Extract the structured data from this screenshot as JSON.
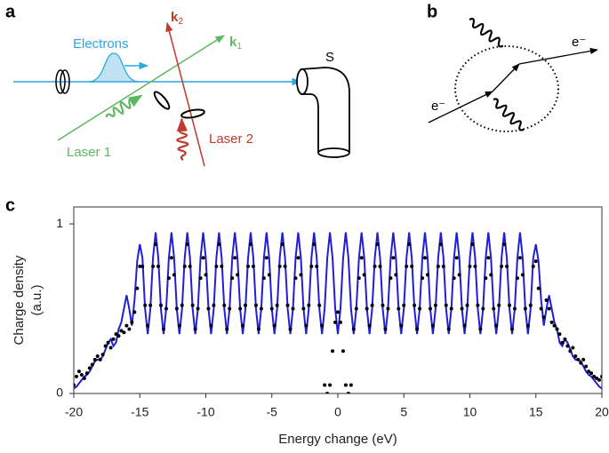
{
  "panels": {
    "a": "a",
    "b": "b",
    "c": "c"
  },
  "diagram_a": {
    "electrons": "Electrons",
    "k1": {
      "symbol": "k",
      "subscript": "1"
    },
    "k2": {
      "symbol": "k",
      "subscript": "2"
    },
    "sample": "S",
    "laser1": "Laser 1",
    "laser2": "Laser 2"
  },
  "diagram_b": {
    "electron_in": "e⁻",
    "electron_out": "e⁻"
  },
  "chart_data": {
    "type": "line",
    "xlabel": "Energy change (eV)",
    "ylabel": [
      "Charge density",
      "(a.u.)"
    ],
    "xlim": [
      -20,
      20
    ],
    "ylim": [
      0,
      1.1
    ],
    "xticks": [
      -20,
      -15,
      -10,
      -5,
      0,
      5,
      10,
      15,
      20
    ],
    "yticks": [
      0,
      1
    ],
    "x": [
      -20,
      -19.8,
      -19.6,
      -19.4,
      -19.2,
      -19,
      -18.8,
      -18.6,
      -18.4,
      -18.2,
      -18,
      -17.8,
      -17.6,
      -17.4,
      -17.2,
      -17,
      -16.8,
      -16.6,
      -16.4,
      -16.2,
      -16,
      -15.8,
      -15.6,
      -15.4,
      -15.2,
      -15,
      -14.8,
      -14.6,
      -14.4,
      -14.2,
      -14,
      -13.8,
      -13.6,
      -13.4,
      -13.2,
      -13,
      -12.8,
      -12.6,
      -12.4,
      -12.2,
      -12,
      -11.8,
      -11.6,
      -11.4,
      -11.2,
      -11,
      -10.8,
      -10.6,
      -10.4,
      -10.2,
      -10,
      -9.8,
      -9.6,
      -9.4,
      -9.2,
      -9,
      -8.8,
      -8.6,
      -8.4,
      -8.2,
      -8,
      -7.8,
      -7.6,
      -7.4,
      -7.2,
      -7,
      -6.8,
      -6.6,
      -6.4,
      -6.2,
      -6,
      -5.8,
      -5.6,
      -5.4,
      -5.2,
      -5,
      -4.8,
      -4.6,
      -4.4,
      -4.2,
      -4,
      -3.8,
      -3.6,
      -3.4,
      -3.2,
      -3,
      -2.8,
      -2.6,
      -2.4,
      -2.2,
      -2,
      -1.8,
      -1.6,
      -1.4,
      -1.2,
      -1,
      -0.8,
      -0.6,
      -0.4,
      -0.2,
      0,
      0.2,
      0.4,
      0.6,
      0.8,
      1,
      1.2,
      1.4,
      1.6,
      1.8,
      2,
      2.2,
      2.4,
      2.6,
      2.8,
      3,
      3.2,
      3.4,
      3.6,
      3.8,
      4,
      4.2,
      4.4,
      4.6,
      4.8,
      5,
      5.2,
      5.4,
      5.6,
      5.8,
      6,
      6.2,
      6.4,
      6.6,
      6.8,
      7,
      7.2,
      7.4,
      7.6,
      7.8,
      8,
      8.2,
      8.4,
      8.6,
      8.8,
      9,
      9.2,
      9.4,
      9.6,
      9.8,
      10,
      10.2,
      10.4,
      10.6,
      10.8,
      11,
      11.2,
      11.4,
      11.6,
      11.8,
      12,
      12.2,
      12.4,
      12.6,
      12.8,
      13,
      13.2,
      13.4,
      13.6,
      13.8,
      14,
      14.2,
      14.4,
      14.6,
      14.8,
      15,
      15.2,
      15.4,
      15.6,
      15.8,
      16,
      16.2,
      16.4,
      16.6,
      16.8,
      17,
      17.2,
      17.4,
      17.6,
      17.8,
      18,
      18.2,
      18.4,
      18.6,
      18.8,
      19,
      19.2,
      19.4,
      19.6,
      19.8,
      20
    ],
    "series": [
      {
        "color": "#1f1fd6",
        "style": "line",
        "values": [
          0.03,
          0.04,
          0.06,
          0.08,
          0.1,
          0.11,
          0.13,
          0.16,
          0.19,
          0.2,
          0.2,
          0.22,
          0.26,
          0.3,
          0.32,
          0.28,
          0.3,
          0.38,
          0.42,
          0.5,
          0.58,
          0.5,
          0.4,
          0.55,
          0.78,
          0.88,
          0.8,
          0.5,
          0.35,
          0.5,
          0.8,
          0.95,
          0.8,
          0.5,
          0.35,
          0.5,
          0.8,
          0.95,
          0.8,
          0.5,
          0.35,
          0.5,
          0.8,
          0.95,
          0.8,
          0.5,
          0.35,
          0.5,
          0.8,
          0.95,
          0.8,
          0.5,
          0.35,
          0.5,
          0.8,
          0.95,
          0.8,
          0.5,
          0.35,
          0.5,
          0.8,
          0.95,
          0.8,
          0.5,
          0.35,
          0.5,
          0.8,
          0.95,
          0.8,
          0.5,
          0.35,
          0.5,
          0.8,
          0.95,
          0.8,
          0.5,
          0.35,
          0.5,
          0.8,
          0.95,
          0.8,
          0.5,
          0.35,
          0.5,
          0.8,
          0.95,
          0.8,
          0.5,
          0.35,
          0.5,
          0.8,
          0.95,
          0.8,
          0.5,
          0.35,
          0.5,
          0.8,
          0.95,
          0.8,
          0.5,
          0.35,
          0.5,
          0.8,
          0.95,
          0.8,
          0.5,
          0.35,
          0.5,
          0.8,
          0.95,
          0.8,
          0.5,
          0.35,
          0.5,
          0.8,
          0.95,
          0.8,
          0.5,
          0.35,
          0.5,
          0.8,
          0.95,
          0.8,
          0.5,
          0.35,
          0.5,
          0.8,
          0.95,
          0.8,
          0.5,
          0.35,
          0.5,
          0.8,
          0.95,
          0.8,
          0.5,
          0.35,
          0.5,
          0.8,
          0.95,
          0.8,
          0.5,
          0.35,
          0.5,
          0.8,
          0.95,
          0.8,
          0.5,
          0.35,
          0.5,
          0.8,
          0.95,
          0.8,
          0.5,
          0.35,
          0.5,
          0.8,
          0.95,
          0.8,
          0.5,
          0.35,
          0.5,
          0.8,
          0.95,
          0.8,
          0.5,
          0.35,
          0.5,
          0.8,
          0.95,
          0.8,
          0.5,
          0.35,
          0.5,
          0.8,
          0.88,
          0.78,
          0.55,
          0.4,
          0.5,
          0.58,
          0.5,
          0.42,
          0.38,
          0.3,
          0.28,
          0.32,
          0.3,
          0.26,
          0.22,
          0.2,
          0.2,
          0.19,
          0.16,
          0.13,
          0.11,
          0.1,
          0.08,
          0.06,
          0.04,
          0.03
        ]
      },
      {
        "color": "#000000",
        "style": "dots",
        "values": [
          0.05,
          0.1,
          0.13,
          0.11,
          0.09,
          0.12,
          0.15,
          0.17,
          0.2,
          0.22,
          0.2,
          0.23,
          0.28,
          0.3,
          0.27,
          0.32,
          0.35,
          0.34,
          0.37,
          0.36,
          0.4,
          0.38,
          0.42,
          0.48,
          0.62,
          0.75,
          0.75,
          0.52,
          0.4,
          0.52,
          0.75,
          0.88,
          0.75,
          0.52,
          0.38,
          0.5,
          0.68,
          0.8,
          0.7,
          0.5,
          0.4,
          0.52,
          0.75,
          0.88,
          0.75,
          0.52,
          0.38,
          0.5,
          0.68,
          0.8,
          0.7,
          0.5,
          0.4,
          0.52,
          0.75,
          0.88,
          0.75,
          0.52,
          0.38,
          0.5,
          0.68,
          0.8,
          0.7,
          0.5,
          0.4,
          0.52,
          0.75,
          0.88,
          0.75,
          0.52,
          0.38,
          0.5,
          0.68,
          0.8,
          0.7,
          0.5,
          0.4,
          0.52,
          0.75,
          0.88,
          0.75,
          0.52,
          0.38,
          0.5,
          0.68,
          0.8,
          0.7,
          0.5,
          0.4,
          0.52,
          0.75,
          0.88,
          0.75,
          0.52,
          0.4,
          0.05,
          0,
          0.05,
          0.25,
          0.42,
          0.48,
          0.42,
          0.25,
          0.05,
          0,
          0.05,
          0.38,
          0.5,
          0.68,
          0.8,
          0.7,
          0.5,
          0.4,
          0.52,
          0.75,
          0.88,
          0.75,
          0.52,
          0.38,
          0.5,
          0.68,
          0.8,
          0.7,
          0.5,
          0.4,
          0.52,
          0.75,
          0.88,
          0.75,
          0.52,
          0.38,
          0.5,
          0.68,
          0.8,
          0.7,
          0.5,
          0.4,
          0.52,
          0.75,
          0.88,
          0.75,
          0.52,
          0.38,
          0.5,
          0.68,
          0.8,
          0.7,
          0.5,
          0.4,
          0.52,
          0.75,
          0.88,
          0.75,
          0.52,
          0.38,
          0.5,
          0.68,
          0.8,
          0.7,
          0.5,
          0.4,
          0.52,
          0.75,
          0.88,
          0.75,
          0.52,
          0.38,
          0.5,
          0.68,
          0.8,
          0.7,
          0.5,
          0.4,
          0.52,
          0.75,
          0.78,
          0.62,
          0.5,
          0.45,
          0.55,
          0.5,
          0.42,
          0.4,
          0.38,
          0.35,
          0.3,
          0.32,
          0.28,
          0.25,
          0.27,
          0.22,
          0.2,
          0.18,
          0.2,
          0.16,
          0.13,
          0.12,
          0.1,
          0.09,
          0.08,
          0.1
        ]
      }
    ]
  }
}
